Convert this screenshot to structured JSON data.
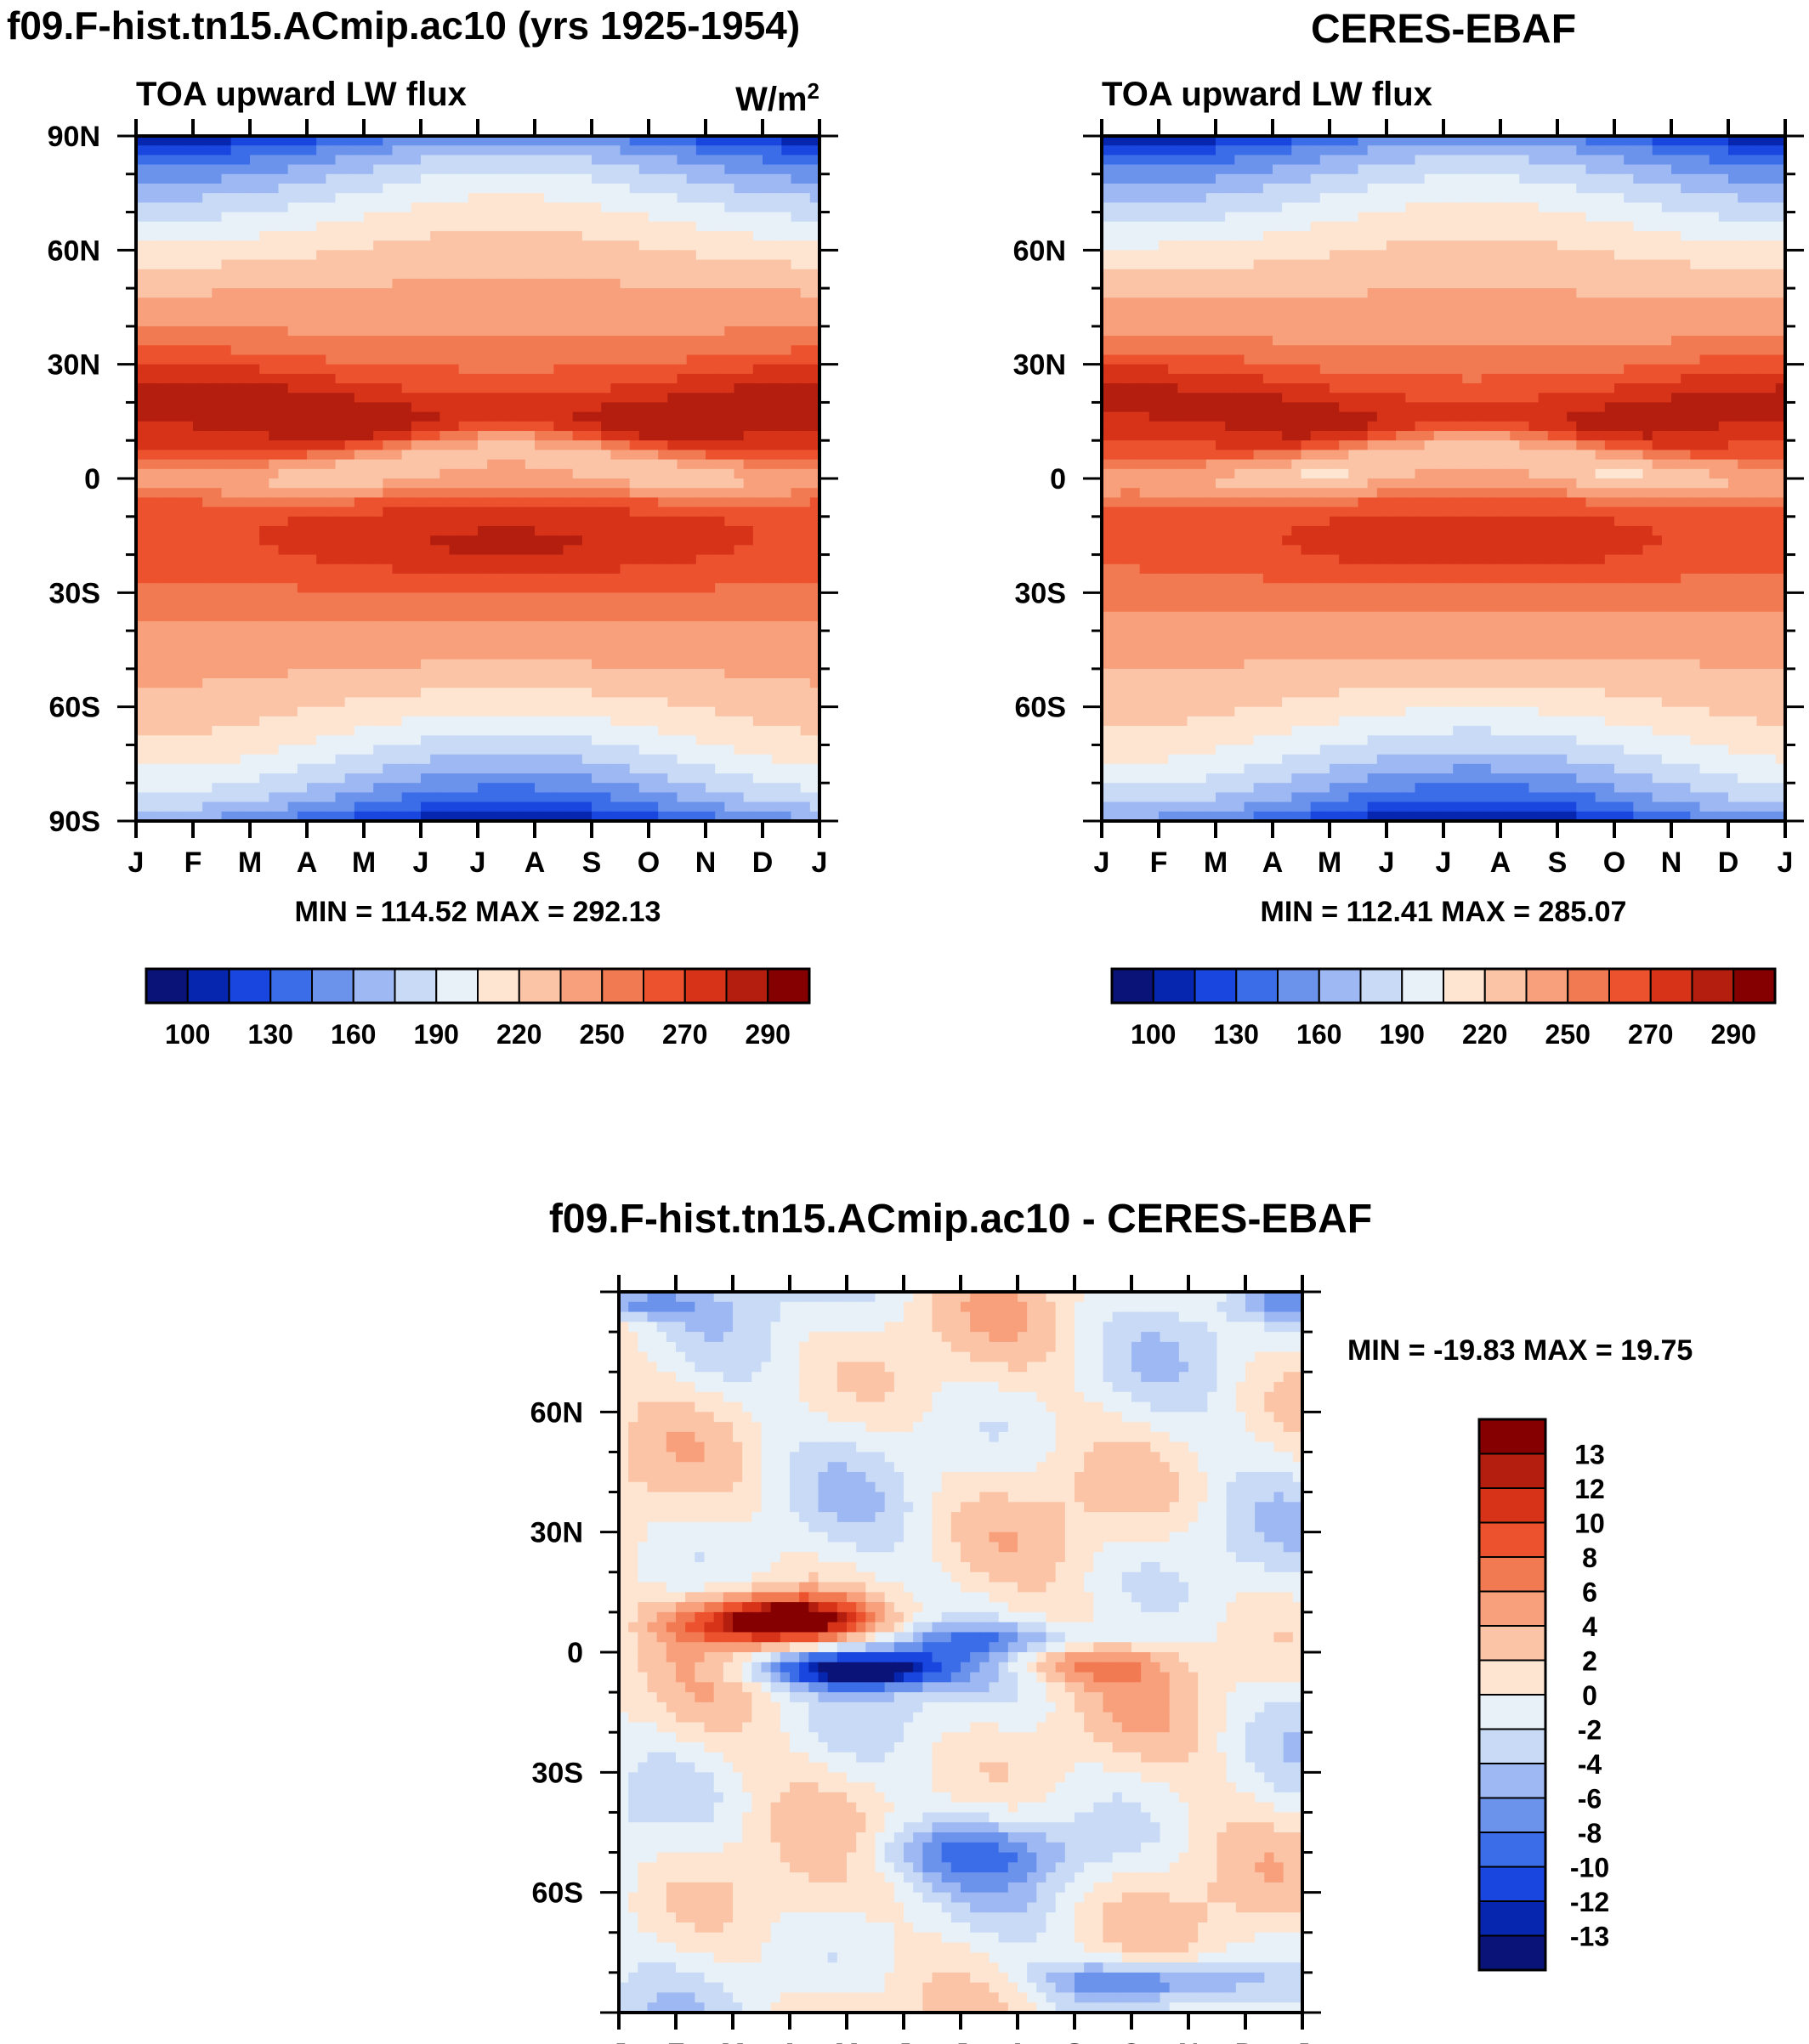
{
  "chart_data": [
    {
      "id": "model",
      "type": "contour",
      "title": "f09.F-hist.tn15.ACmip.ac10 (yrs 1925-1954)",
      "subtitle_left": "TOA upward LW flux",
      "units": "W/m",
      "units_sup": "2",
      "x_ticks": [
        "J",
        "F",
        "M",
        "A",
        "M",
        "J",
        "J",
        "A",
        "S",
        "O",
        "N",
        "D",
        "J"
      ],
      "y_ticks": [
        "90N",
        "60N",
        "30N",
        "0",
        "30S",
        "60S",
        "90S"
      ],
      "ylim": [
        -90,
        90
      ],
      "min": 114.52,
      "max": 292.13,
      "stats": "MIN = 114.52 MAX = 292.13",
      "colorbar_labels": [
        "100",
        "130",
        "160",
        "190",
        "220",
        "250",
        "270",
        "290"
      ]
    },
    {
      "id": "obs",
      "type": "contour",
      "title": "CERES-EBAF",
      "subtitle_left": "TOA upward LW flux",
      "x_ticks": [
        "J",
        "F",
        "M",
        "A",
        "M",
        "J",
        "J",
        "A",
        "S",
        "O",
        "N",
        "D",
        "J"
      ],
      "y_ticks": [
        "60N",
        "30N",
        "0",
        "30S",
        "60S"
      ],
      "ylim": [
        -90,
        90
      ],
      "min": 112.41,
      "max": 285.07,
      "stats": "MIN = 112.41 MAX = 285.07",
      "colorbar_labels": [
        "100",
        "130",
        "160",
        "190",
        "220",
        "250",
        "270",
        "290"
      ]
    },
    {
      "id": "diff",
      "type": "contour",
      "title": "f09.F-hist.tn15.ACmip.ac10 - CERES-EBAF",
      "x_ticks": [
        "J",
        "F",
        "M",
        "A",
        "M",
        "J",
        "J",
        "A",
        "S",
        "O",
        "N",
        "D",
        "J"
      ],
      "y_ticks": [
        "60N",
        "30N",
        "0",
        "30S",
        "60S"
      ],
      "ylim": [
        -90,
        90
      ],
      "min": -19.83,
      "max": 19.75,
      "stats": "MIN = -19.83 MAX =  19.75",
      "colorbar_labels": [
        "13",
        "12",
        "10",
        "8",
        "6",
        "4",
        "2",
        "0",
        "-2",
        "-4",
        "-6",
        "-8",
        "-10",
        "-12",
        "-13"
      ]
    }
  ],
  "palettes": {
    "flux": [
      "#0a1378",
      "#0626b0",
      "#1a46e0",
      "#3b6de8",
      "#6c93ec",
      "#9db8f2",
      "#c8daf5",
      "#e8f1f8",
      "#fde5d2",
      "#fbc4a6",
      "#f7a07b",
      "#f27a52",
      "#ec522e",
      "#d73318",
      "#b41e0e",
      "#850000"
    ],
    "diff": [
      "#0a1378",
      "#0626b0",
      "#1a46e0",
      "#3b6de8",
      "#6c93ec",
      "#9db8f2",
      "#c8daf5",
      "#e8f1f8",
      "#fde5d2",
      "#fbc4a6",
      "#f7a07b",
      "#f27a52",
      "#ec522e",
      "#d73318",
      "#b41e0e",
      "#850000"
    ]
  }
}
